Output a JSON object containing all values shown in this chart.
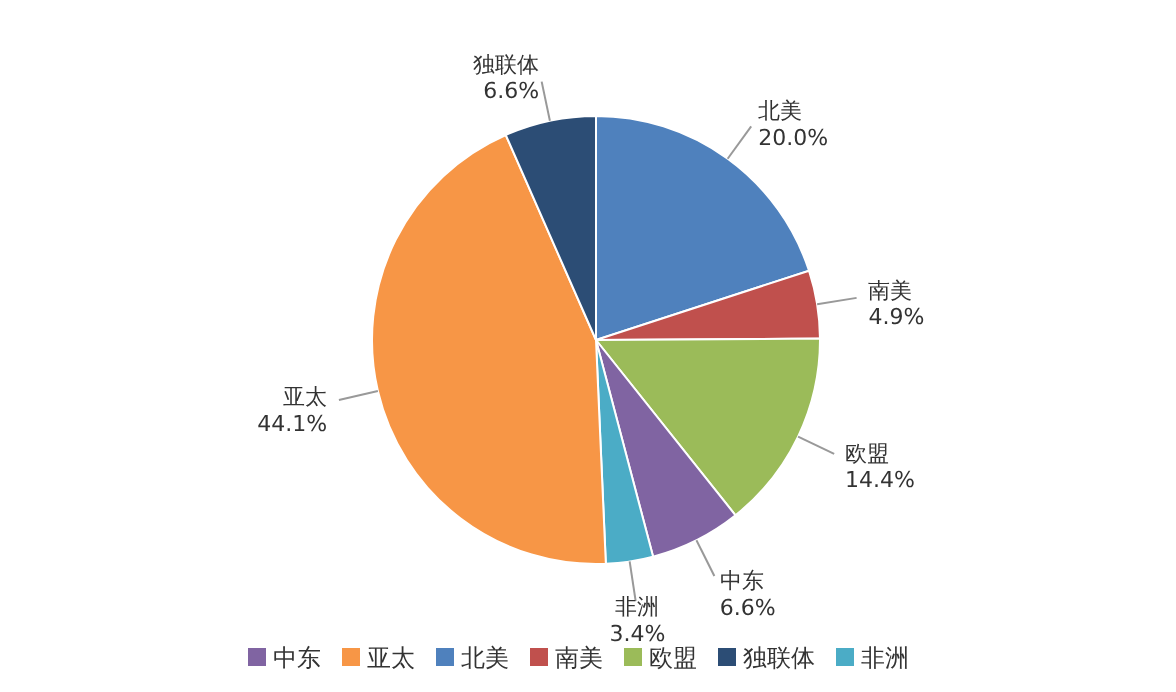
{
  "chart_data": {
    "type": "pie",
    "categories": [
      "北美",
      "南美",
      "欧盟",
      "中东",
      "非洲",
      "亚太",
      "独联体"
    ],
    "values": [
      20.0,
      4.9,
      14.4,
      6.6,
      3.4,
      44.1,
      6.6
    ],
    "value_labels": [
      "20.0%",
      "4.9%",
      "14.4%",
      "6.6%",
      "3.4%",
      "44.1%",
      "6.6%"
    ],
    "colors": [
      "#4f81bd",
      "#c0504d",
      "#9bbb59",
      "#8064a2",
      "#4bacc6",
      "#f79646",
      "#2c4d75"
    ],
    "legend": "bottom"
  }
}
